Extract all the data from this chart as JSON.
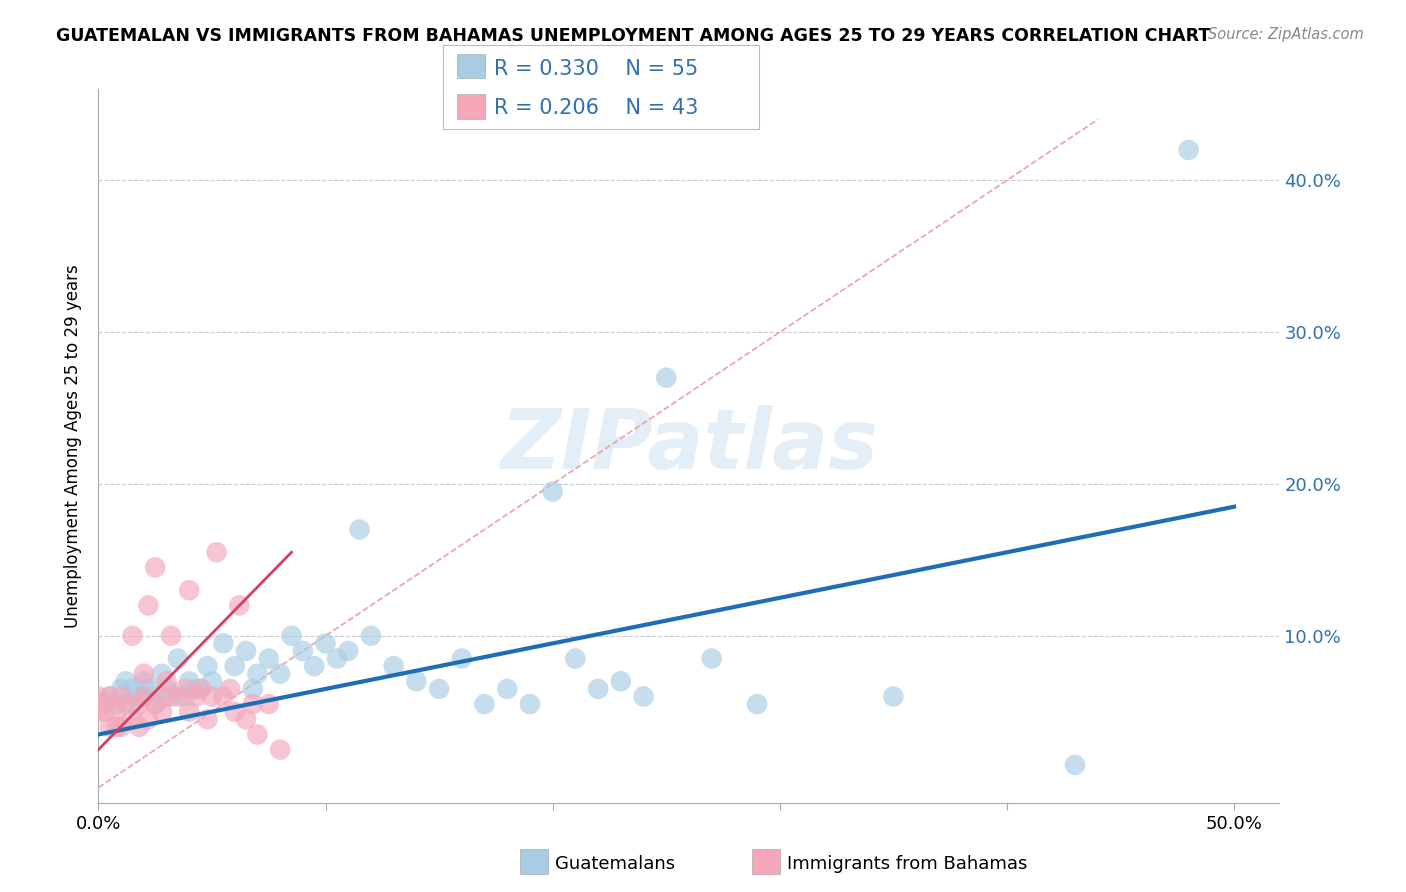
{
  "title": "GUATEMALAN VS IMMIGRANTS FROM BAHAMAS UNEMPLOYMENT AMONG AGES 25 TO 29 YEARS CORRELATION CHART",
  "source": "Source: ZipAtlas.com",
  "ylabel": "Unemployment Among Ages 25 to 29 years",
  "xlim": [
    0.0,
    0.52
  ],
  "ylim": [
    -0.01,
    0.46
  ],
  "blue_color": "#a8cce4",
  "pink_color": "#f4a7b9",
  "blue_line_color": "#1f6eb5",
  "pink_line_color": "#d44060",
  "diag_color": "#e8a0b0",
  "grid_color": "#cccccc",
  "legend_r_blue": "R = 0.330",
  "legend_n_blue": "N = 55",
  "legend_r_pink": "R = 0.206",
  "legend_n_pink": "N = 43",
  "legend_label_blue": "Guatemalans",
  "legend_label_pink": "Immigrants from Bahamas",
  "watermark": "ZIPatlas",
  "blue_trend_x0": 0.0,
  "blue_trend_y0": 0.035,
  "blue_trend_x1": 0.5,
  "blue_trend_y1": 0.185,
  "pink_trend_x0": 0.0,
  "pink_trend_y0": 0.025,
  "pink_trend_x1": 0.085,
  "pink_trend_y1": 0.155,
  "guatemalan_x": [
    0.005,
    0.008,
    0.01,
    0.012,
    0.015,
    0.015,
    0.018,
    0.02,
    0.02,
    0.022,
    0.025,
    0.025,
    0.028,
    0.03,
    0.032,
    0.035,
    0.038,
    0.04,
    0.042,
    0.045,
    0.048,
    0.05,
    0.055,
    0.06,
    0.065,
    0.068,
    0.07,
    0.075,
    0.08,
    0.085,
    0.09,
    0.095,
    0.1,
    0.105,
    0.11,
    0.115,
    0.12,
    0.13,
    0.14,
    0.15,
    0.16,
    0.17,
    0.18,
    0.19,
    0.2,
    0.21,
    0.22,
    0.23,
    0.24,
    0.25,
    0.27,
    0.29,
    0.35,
    0.43,
    0.48
  ],
  "guatemalan_y": [
    0.06,
    0.055,
    0.065,
    0.07,
    0.065,
    0.055,
    0.06,
    0.07,
    0.06,
    0.065,
    0.06,
    0.055,
    0.075,
    0.065,
    0.06,
    0.085,
    0.06,
    0.07,
    0.065,
    0.065,
    0.08,
    0.07,
    0.095,
    0.08,
    0.09,
    0.065,
    0.075,
    0.085,
    0.075,
    0.1,
    0.09,
    0.08,
    0.095,
    0.085,
    0.09,
    0.17,
    0.1,
    0.08,
    0.07,
    0.065,
    0.085,
    0.055,
    0.065,
    0.055,
    0.195,
    0.085,
    0.065,
    0.07,
    0.06,
    0.27,
    0.085,
    0.055,
    0.06,
    0.015,
    0.42
  ],
  "bahamas_x": [
    0.0,
    0.0,
    0.002,
    0.003,
    0.005,
    0.005,
    0.008,
    0.008,
    0.01,
    0.01,
    0.012,
    0.015,
    0.015,
    0.018,
    0.018,
    0.02,
    0.02,
    0.022,
    0.022,
    0.025,
    0.025,
    0.028,
    0.03,
    0.03,
    0.032,
    0.035,
    0.038,
    0.04,
    0.04,
    0.043,
    0.045,
    0.048,
    0.05,
    0.052,
    0.055,
    0.058,
    0.06,
    0.062,
    0.065,
    0.068,
    0.07,
    0.075,
    0.08
  ],
  "bahamas_y": [
    0.05,
    0.06,
    0.055,
    0.05,
    0.04,
    0.06,
    0.04,
    0.05,
    0.04,
    0.06,
    0.055,
    0.045,
    0.1,
    0.04,
    0.055,
    0.06,
    0.075,
    0.045,
    0.12,
    0.055,
    0.145,
    0.05,
    0.06,
    0.07,
    0.1,
    0.06,
    0.065,
    0.05,
    0.13,
    0.06,
    0.065,
    0.045,
    0.06,
    0.155,
    0.06,
    0.065,
    0.05,
    0.12,
    0.045,
    0.055,
    0.035,
    0.055,
    0.025
  ]
}
